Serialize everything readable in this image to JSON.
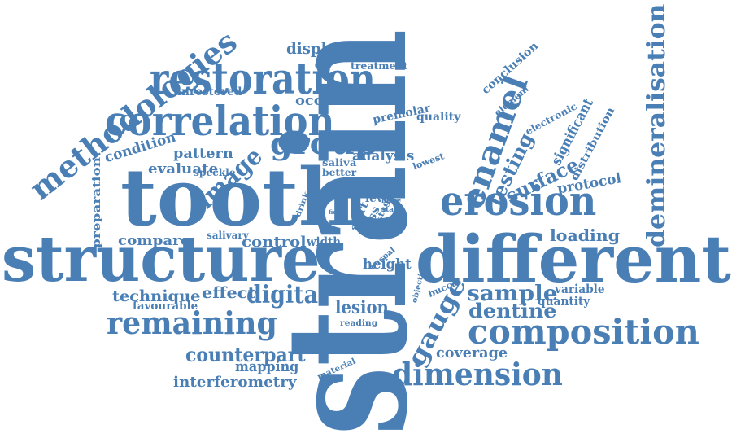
{
  "word_cloud": {
    "color": "#4a7fb5",
    "words": [
      {
        "id": "strain",
        "text": "strain"
      },
      {
        "id": "tooth",
        "text": "tooth"
      },
      {
        "id": "structure",
        "text": "structure"
      },
      {
        "id": "different",
        "text": "different"
      },
      {
        "id": "restoration",
        "text": "restoration"
      },
      {
        "id": "correlation",
        "text": "correlation"
      },
      {
        "id": "methodologies",
        "text": "methodologies"
      },
      {
        "id": "composition",
        "text": "composition"
      },
      {
        "id": "erosion",
        "text": "erosion"
      },
      {
        "id": "enamel",
        "text": "enamel"
      },
      {
        "id": "group",
        "text": "group"
      },
      {
        "id": "remaining",
        "text": "remaining"
      },
      {
        "id": "dimension",
        "text": "dimension"
      },
      {
        "id": "demineralisation",
        "text": "demineralisation"
      },
      {
        "id": "gauge",
        "text": "gauge"
      },
      {
        "id": "image",
        "text": "image"
      },
      {
        "id": "digital",
        "text": "digital"
      },
      {
        "id": "surface",
        "text": "surface"
      },
      {
        "id": "testing",
        "text": "testing"
      },
      {
        "id": "sample",
        "text": "sample"
      },
      {
        "id": "counterpart",
        "text": "counterpart"
      },
      {
        "id": "displacement",
        "text": "displacement"
      },
      {
        "id": "loading",
        "text": "loading"
      },
      {
        "id": "dentine",
        "text": "dentine"
      },
      {
        "id": "technique",
        "text": "technique"
      },
      {
        "id": "lesion",
        "text": "lesion"
      },
      {
        "id": "effect",
        "text": "effect"
      },
      {
        "id": "coverage",
        "text": "coverage"
      },
      {
        "id": "interferometry",
        "text": "interferometry"
      },
      {
        "id": "mapping",
        "text": "mapping"
      },
      {
        "id": "control",
        "text": "control"
      },
      {
        "id": "condition",
        "text": "condition"
      },
      {
        "id": "pattern",
        "text": "pattern"
      },
      {
        "id": "evaluate",
        "text": "evaluate"
      },
      {
        "id": "compare",
        "text": "compare"
      },
      {
        "id": "occlusal",
        "text": "occlusal"
      },
      {
        "id": "unrestored",
        "text": "unrestored"
      },
      {
        "id": "protocol",
        "text": "protocol"
      },
      {
        "id": "height",
        "text": "height"
      },
      {
        "id": "quality",
        "text": "quality"
      },
      {
        "id": "conclusion",
        "text": "conclusion"
      },
      {
        "id": "analysis",
        "text": "analysis"
      },
      {
        "id": "significant",
        "text": "significant"
      },
      {
        "id": "distribution",
        "text": "distribution"
      },
      {
        "id": "electronic",
        "text": "electronic"
      },
      {
        "id": "premolar",
        "text": "premolar"
      },
      {
        "id": "element",
        "text": "element"
      },
      {
        "id": "treatment",
        "text": "treatment"
      },
      {
        "id": "variable",
        "text": "variable"
      },
      {
        "id": "quantity",
        "text": "quantity"
      },
      {
        "id": "width",
        "text": "width"
      },
      {
        "id": "favourable",
        "text": "favourable"
      },
      {
        "id": "preparation",
        "text": "preparation"
      },
      {
        "id": "saliva",
        "text": "saliva"
      },
      {
        "id": "better",
        "text": "better"
      },
      {
        "id": "speckle",
        "text": "speckle"
      },
      {
        "id": "salivary",
        "text": "salivary"
      },
      {
        "id": "level",
        "text": "level"
      },
      {
        "id": "part",
        "text": "part"
      },
      {
        "id": "loss",
        "text": "loss"
      },
      {
        "id": "lowest",
        "text": "lowest"
      },
      {
        "id": "cusp",
        "text": "cusp"
      },
      {
        "id": "more",
        "text": "more"
      },
      {
        "id": "static",
        "text": "static"
      },
      {
        "id": "stage",
        "text": "stage"
      },
      {
        "id": "soft",
        "text": "soft"
      },
      {
        "id": "cuspal",
        "text": "cuspal"
      },
      {
        "id": "objective",
        "text": "objective"
      },
      {
        "id": "buccal",
        "text": "buccal"
      },
      {
        "id": "reading",
        "text": "reading"
      },
      {
        "id": "material",
        "text": "material"
      },
      {
        "id": "drink",
        "text": "drink"
      },
      {
        "id": "cary",
        "text": "cary"
      },
      {
        "id": "wall",
        "text": "wall"
      },
      {
        "id": "field",
        "text": "field"
      }
    ]
  }
}
